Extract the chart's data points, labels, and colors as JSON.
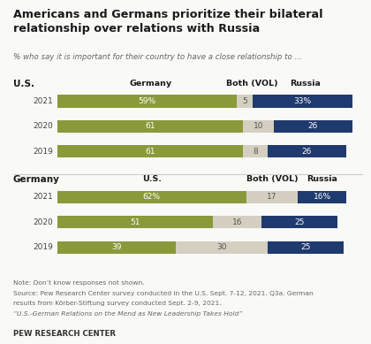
{
  "title": "Americans and Germans prioritize their bilateral\nrelationship over relations with Russia",
  "subtitle": "% who say it is important for their country to have a close relationship to ...",
  "us_section_label": "U.S.",
  "us_col1_label": "Germany",
  "us_col2_label": "Both (VOL)",
  "us_col3_label": "Russia",
  "de_section_label": "Germany",
  "de_col1_label": "U.S.",
  "de_col2_label": "Both (VOL)",
  "de_col3_label": "Russia",
  "us_years": [
    "2021",
    "2020",
    "2019"
  ],
  "us_germany": [
    59,
    61,
    61
  ],
  "us_both": [
    5,
    10,
    8
  ],
  "us_russia": [
    33,
    26,
    26
  ],
  "de_years": [
    "2021",
    "2020",
    "2019"
  ],
  "de_us": [
    62,
    51,
    39
  ],
  "de_both": [
    17,
    16,
    30
  ],
  "de_russia": [
    16,
    25,
    25
  ],
  "color_green": "#8a9a3a",
  "color_tan": "#d4cfc0",
  "color_blue": "#1f3a6e",
  "color_bg": "#f9f9f7",
  "note_line1": "Note: Don’t know responses not shown.",
  "note_line2": "Source: Pew Research Center survey conducted in the U.S. Sept. 7-12, 2021. Q3a. German",
  "note_line3": "results from Körber-Stiftung survey conducted Sept. 2-9, 2021.",
  "note_line4": "“U.S.-German Relations on the Mend as New Leadership Takes Hold”",
  "footer": "PEW RESEARCH CENTER"
}
